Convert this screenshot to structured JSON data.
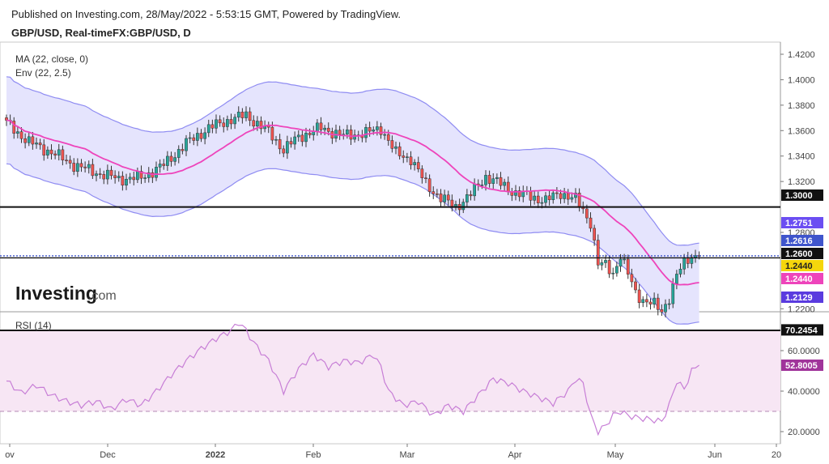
{
  "header": {
    "published": "Published on Investing.com, 28/May/2022 - 5:53:15 GMT, Powered by TradingView.",
    "symbol": "GBP/USD, Real-timeFX:GBP/USD, D"
  },
  "indicators": {
    "ma_label": "MA (22, close, 0)",
    "env_label": "Env (22, 2.5)",
    "rsi_label": "RSI (14)"
  },
  "watermark": {
    "brand": "Investing",
    "suffix": ".com"
  },
  "colors": {
    "up": "#26a69a",
    "down": "#ef5350",
    "ma": "#ee44bb",
    "env_line": "#8f8cf2",
    "env_fill": "#e5e4fd",
    "rsi_line": "#c77ed6",
    "rsi_fill": "#f7e6f4"
  },
  "chart_data": [
    {
      "type": "candlestick",
      "x_ticks": [
        "ov",
        "Dec",
        "2022",
        "Feb",
        "Mar",
        "Apr",
        "May",
        "Jun",
        "20"
      ],
      "y_ticks": [
        "1.4200",
        "1.4000",
        "1.3800",
        "1.3600",
        "1.3400",
        "1.3200",
        "1.2800",
        "1.2200"
      ],
      "ylim": [
        1.21,
        1.425
      ],
      "anchors": [
        [
          0,
          1.366
        ],
        [
          6,
          1.351
        ],
        [
          12,
          1.343
        ],
        [
          18,
          1.333
        ],
        [
          24,
          1.327
        ],
        [
          30,
          1.322
        ],
        [
          36,
          1.323
        ],
        [
          42,
          1.333
        ],
        [
          48,
          1.35
        ],
        [
          54,
          1.362
        ],
        [
          60,
          1.369
        ],
        [
          64,
          1.372
        ],
        [
          70,
          1.359
        ],
        [
          74,
          1.345
        ],
        [
          78,
          1.355
        ],
        [
          84,
          1.362
        ],
        [
          90,
          1.356
        ],
        [
          96,
          1.358
        ],
        [
          100,
          1.362
        ],
        [
          104,
          1.342
        ],
        [
          108,
          1.338
        ],
        [
          112,
          1.318
        ],
        [
          116,
          1.307
        ],
        [
          120,
          1.3
        ],
        [
          124,
          1.31
        ],
        [
          128,
          1.324
        ],
        [
          132,
          1.318
        ],
        [
          136,
          1.311
        ],
        [
          140,
          1.308
        ],
        [
          144,
          1.305
        ],
        [
          148,
          1.311
        ],
        [
          152,
          1.306
        ],
        [
          156,
          1.288
        ],
        [
          158,
          1.255
        ],
        [
          160,
          1.254
        ],
        [
          162,
          1.248
        ],
        [
          164,
          1.262
        ],
        [
          166,
          1.247
        ],
        [
          168,
          1.233
        ],
        [
          170,
          1.227
        ],
        [
          173,
          1.223
        ],
        [
          175,
          1.218
        ],
        [
          177,
          1.229
        ],
        [
          179,
          1.246
        ],
        [
          181,
          1.256
        ],
        [
          183,
          1.262
        ],
        [
          185,
          1.2616
        ]
      ],
      "envelope_percent": 2.5,
      "ma_period": 22,
      "price_labels": [
        {
          "value": "1.3000",
          "price": 1.3,
          "bg": "#111111",
          "fg": "#ffffff"
        },
        {
          "value": "1.2751",
          "price": 1.2751,
          "bg": "#6b4ef2",
          "fg": "#ffffff"
        },
        {
          "value": "1.2616",
          "price": 1.2616,
          "bg": "#3f55cc",
          "fg": "#ffffff"
        },
        {
          "value": "1.2600",
          "price": 1.26,
          "bg": "#111111",
          "fg": "#ffffff"
        },
        {
          "value": "1.2440",
          "price": 1.244,
          "bg": "#f5d60c",
          "fg": "#222222"
        },
        {
          "value": "1.2440",
          "price": 1.244,
          "bg": "#ee44bb",
          "fg": "#ffffff"
        },
        {
          "value": "1.2129",
          "price": 1.2129,
          "bg": "#5a3bdf",
          "fg": "#ffffff"
        }
      ],
      "horizontal_lines": [
        1.3,
        1.26,
        1.2616
      ]
    },
    {
      "type": "line",
      "name": "RSI (14)",
      "y_ticks": [
        "60.0000",
        "40.0000",
        "20.0000"
      ],
      "ylim": [
        15,
        76
      ],
      "levels": [
        70,
        30
      ],
      "anchors": [
        [
          0,
          45
        ],
        [
          4,
          39
        ],
        [
          8,
          43
        ],
        [
          12,
          38
        ],
        [
          16,
          35
        ],
        [
          20,
          33
        ],
        [
          24,
          35
        ],
        [
          28,
          31
        ],
        [
          32,
          36
        ],
        [
          36,
          33
        ],
        [
          40,
          40
        ],
        [
          44,
          48
        ],
        [
          48,
          55
        ],
        [
          52,
          61
        ],
        [
          56,
          66
        ],
        [
          60,
          70
        ],
        [
          62,
          74
        ],
        [
          64,
          70
        ],
        [
          66,
          64
        ],
        [
          70,
          55
        ],
        [
          74,
          40
        ],
        [
          78,
          51
        ],
        [
          82,
          58
        ],
        [
          86,
          52
        ],
        [
          90,
          55
        ],
        [
          94,
          54
        ],
        [
          98,
          58
        ],
        [
          100,
          52
        ],
        [
          102,
          40
        ],
        [
          106,
          33
        ],
        [
          110,
          35
        ],
        [
          114,
          28
        ],
        [
          118,
          33
        ],
        [
          122,
          30
        ],
        [
          126,
          38
        ],
        [
          130,
          46
        ],
        [
          134,
          44
        ],
        [
          138,
          40
        ],
        [
          142,
          37
        ],
        [
          146,
          34
        ],
        [
          150,
          40
        ],
        [
          152,
          46
        ],
        [
          154,
          44
        ],
        [
          156,
          28
        ],
        [
          158,
          20
        ],
        [
          160,
          23
        ],
        [
          162,
          28
        ],
        [
          164,
          30
        ],
        [
          166,
          28
        ],
        [
          168,
          27
        ],
        [
          172,
          26
        ],
        [
          175,
          25
        ],
        [
          177,
          33
        ],
        [
          179,
          45
        ],
        [
          181,
          41
        ],
        [
          183,
          50
        ],
        [
          185,
          52.8005
        ]
      ],
      "price_labels": [
        {
          "value": "70.2454",
          "price": 70.2454,
          "bg": "#111111",
          "fg": "#ffffff"
        },
        {
          "value": "52.8005",
          "price": 52.8005,
          "bg": "#a0349a",
          "fg": "#ffffff"
        }
      ]
    }
  ]
}
